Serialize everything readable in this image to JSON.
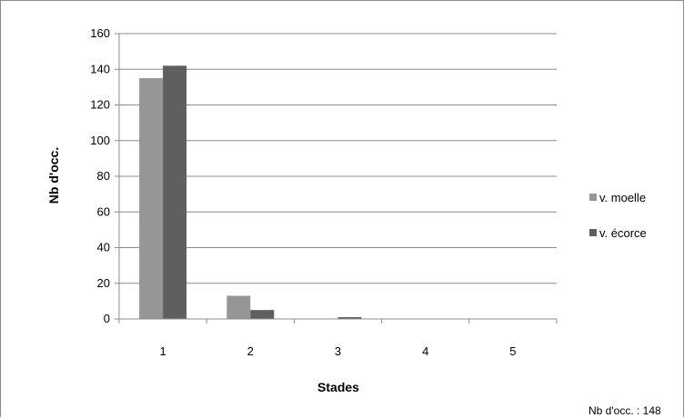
{
  "chart_data": {
    "type": "bar",
    "categories": [
      "1",
      "2",
      "3",
      "4",
      "5"
    ],
    "series": [
      {
        "name": "v. moelle",
        "values": [
          135,
          13,
          0,
          0,
          0
        ],
        "color": "#969696"
      },
      {
        "name": "v. écorce",
        "values": [
          142,
          5,
          1,
          0,
          0
        ],
        "color": "#5f5f5f"
      }
    ],
    "title": "",
    "xlabel": "Stades",
    "ylabel": "Nb d'occ.",
    "ylim": [
      0,
      160
    ],
    "yticks": [
      0,
      20,
      40,
      60,
      80,
      100,
      120,
      140,
      160
    ],
    "grid": true,
    "legend_position": "right",
    "footnote": "Nb d'occ. : 148"
  }
}
